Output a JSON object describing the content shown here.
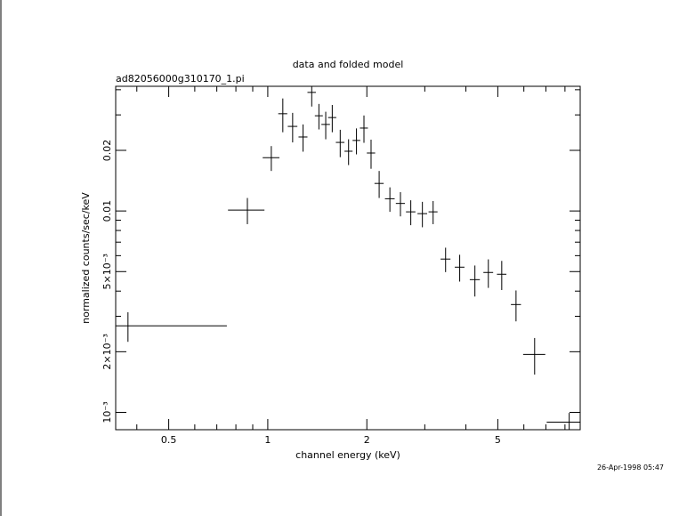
{
  "chart_data": {
    "type": "errorbar",
    "title": "data and folded model",
    "subtitle": "ad82056000g310170_1.pi",
    "x_label": "channel energy (keV)",
    "y_label": "normalized counts/sec/keV",
    "footer": "26-Apr-1998 05:47",
    "log_x": true,
    "log_y": true,
    "color": "#000000",
    "xlim": [
      0.345,
      8.9
    ],
    "ylim": [
      0.00082,
      0.0416
    ],
    "xticks": [
      0.5,
      1,
      2,
      5
    ],
    "xminor": [
      0.4,
      0.6,
      0.7,
      0.8,
      0.9,
      3,
      4,
      6,
      7,
      8
    ],
    "yticks": [
      {
        "value": 0.001,
        "label": "10⁻³"
      },
      {
        "value": 0.002,
        "label": "2×10⁻³"
      },
      {
        "value": 0.005,
        "label": "5×10⁻³"
      },
      0.01,
      0.02
    ],
    "yminor": [
      0.003,
      0.004,
      0.006,
      0.007,
      0.008,
      0.009,
      0.03,
      0.04
    ],
    "series": [
      {
        "x": [
          0.376,
          0.867,
          1.025,
          1.111,
          1.19,
          1.28,
          1.36,
          1.43,
          1.5,
          1.57,
          1.66,
          1.76,
          1.86,
          1.96,
          2.06,
          2.18,
          2.35,
          2.53,
          2.72,
          2.95,
          3.18,
          3.47,
          3.83,
          4.26,
          4.68,
          5.14,
          5.68,
          6.47,
          8.24
        ],
        "xerr": [
          0.375,
          0.11,
          0.06,
          0.035,
          0.04,
          0.04,
          0.04,
          0.04,
          0.045,
          0.045,
          0.05,
          0.05,
          0.05,
          0.055,
          0.06,
          0.07,
          0.08,
          0.08,
          0.09,
          0.1,
          0.1,
          0.12,
          0.13,
          0.15,
          0.16,
          0.17,
          0.2,
          0.5,
          1.2
        ],
        "y": [
          0.00269,
          0.0101,
          0.0184,
          0.0304,
          0.0263,
          0.0233,
          0.0388,
          0.0297,
          0.0269,
          0.0291,
          0.0219,
          0.0198,
          0.0224,
          0.0258,
          0.0194,
          0.0137,
          0.0115,
          0.0109,
          0.0099,
          0.0097,
          0.0099,
          0.00577,
          0.00526,
          0.00456,
          0.00495,
          0.00485,
          0.00343,
          0.00194,
          0.000894
        ],
        "yerr": [
          0.00045,
          0.0015,
          0.0026,
          0.0058,
          0.0044,
          0.0036,
          0.0058,
          0.0043,
          0.0042,
          0.0045,
          0.0034,
          0.0029,
          0.0033,
          0.004,
          0.0032,
          0.0021,
          0.0016,
          0.0015,
          0.0014,
          0.0014,
          0.0013,
          0.0008,
          0.0008,
          0.0008,
          0.0008,
          0.0008,
          0.0006,
          0.0004,
          0.0001
        ]
      }
    ]
  }
}
